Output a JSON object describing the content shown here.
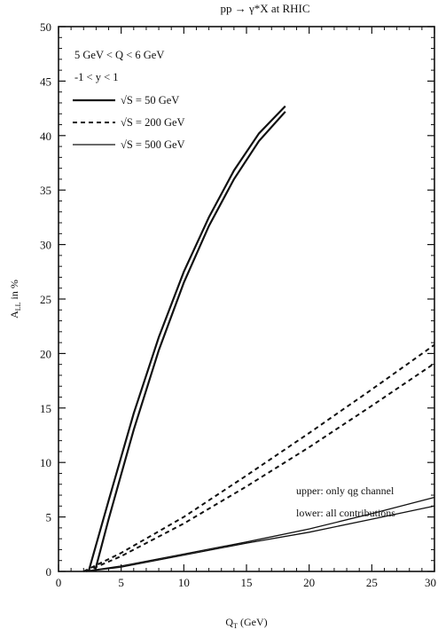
{
  "chart_data": {
    "type": "line",
    "title": "pp → γ*X at RHIC",
    "xlabel": "Q_T (GeV)",
    "ylabel": "A_LL in %",
    "xlim": [
      0,
      30
    ],
    "ylim": [
      0,
      50
    ],
    "xticks": [
      0,
      5,
      10,
      15,
      20,
      25,
      30
    ],
    "yticks": [
      0,
      5,
      10,
      15,
      20,
      25,
      30,
      35,
      40,
      45,
      50
    ],
    "grid": false,
    "legend_position": "top-left",
    "legend_header": [
      "5 GeV < Q < 6 GeV",
      "-1 < y < 1"
    ],
    "legend": [
      {
        "label": "√S = 50 GeV",
        "style": "solid"
      },
      {
        "label": "√S = 200 GeV",
        "style": "dashed"
      },
      {
        "label": "√S = 500 GeV",
        "style": "thin"
      }
    ],
    "annotations": [
      "upper: only qg channel",
      "lower: all contributions"
    ],
    "series": [
      {
        "group": 0,
        "variant": "upper",
        "x": [
          2.4,
          4,
          6,
          8,
          10,
          12,
          14,
          16,
          18.1
        ],
        "y": [
          0,
          6.5,
          14.5,
          21.5,
          27.5,
          32.5,
          36.8,
          40.2,
          42.7
        ]
      },
      {
        "group": 0,
        "variant": "lower",
        "x": [
          2.9,
          4,
          6,
          8,
          10,
          12,
          14,
          16,
          18.1
        ],
        "y": [
          0,
          4.8,
          13,
          20.3,
          26.5,
          31.7,
          36,
          39.5,
          42.2
        ]
      },
      {
        "group": 1,
        "variant": "upper",
        "x": [
          2.0,
          5,
          10,
          15,
          20,
          25,
          30
        ],
        "y": [
          0,
          1.7,
          5.0,
          8.8,
          12.7,
          16.7,
          20.8
        ]
      },
      {
        "group": 1,
        "variant": "lower",
        "x": [
          2.2,
          5,
          10,
          15,
          20,
          25,
          30
        ],
        "y": [
          0,
          1.4,
          4.4,
          7.8,
          11.4,
          15.2,
          19.1
        ]
      },
      {
        "group": 2,
        "variant": "upper",
        "x": [
          2.0,
          5,
          10,
          15,
          20,
          25,
          30
        ],
        "y": [
          0,
          0.5,
          1.6,
          2.7,
          3.9,
          5.3,
          6.8
        ]
      },
      {
        "group": 2,
        "variant": "lower",
        "x": [
          2.2,
          5,
          10,
          15,
          20,
          25,
          30
        ],
        "y": [
          0,
          0.4,
          1.5,
          2.6,
          3.6,
          4.8,
          6.0
        ]
      }
    ]
  }
}
